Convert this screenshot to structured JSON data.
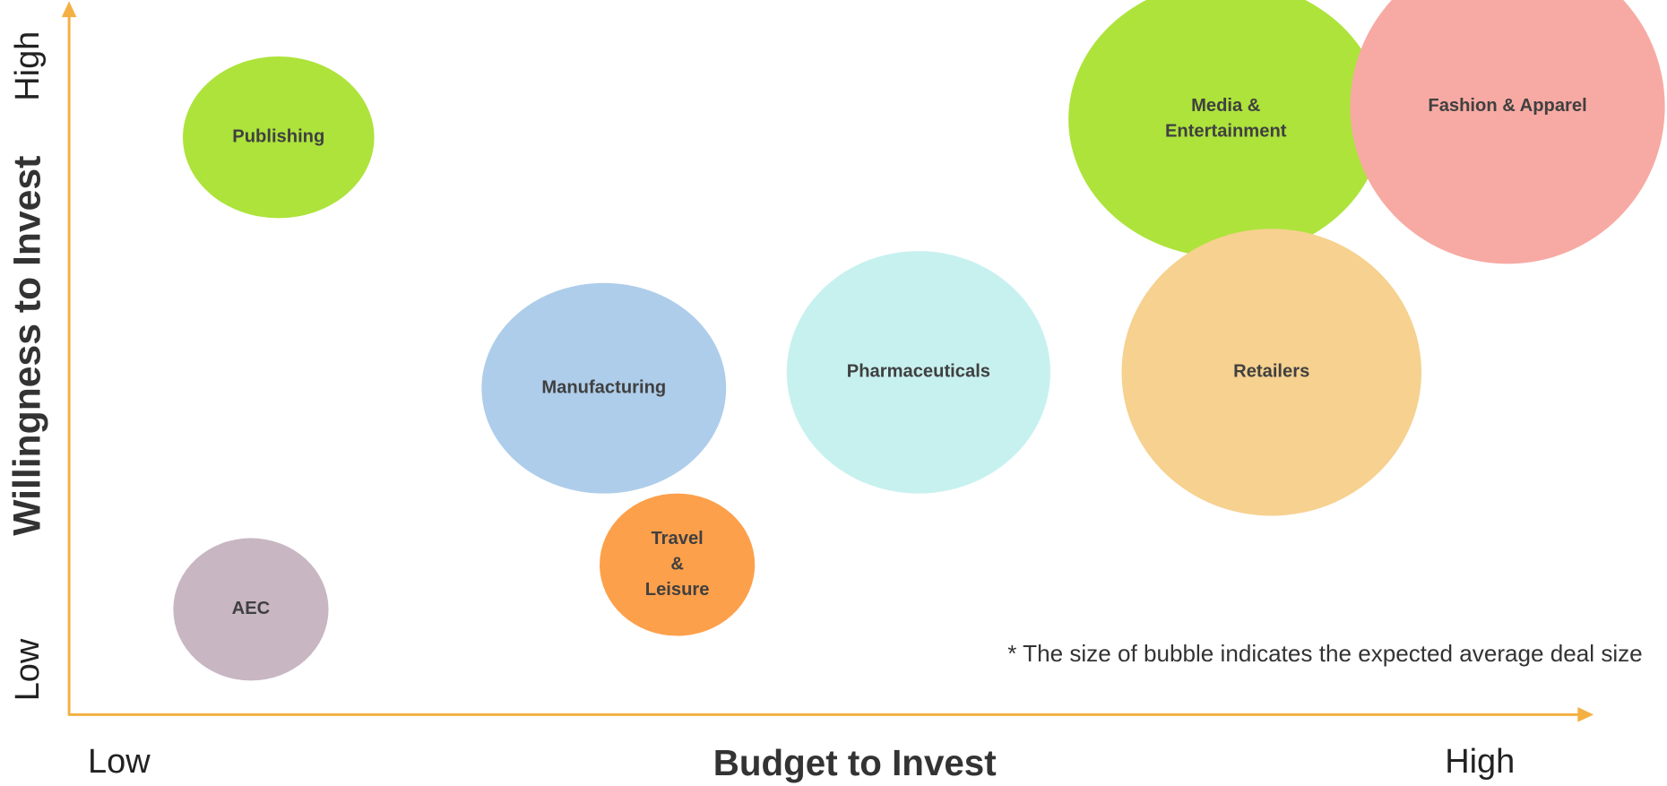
{
  "y_axis": {
    "label": "Willingness to Invest",
    "high": "High",
    "low": "Low"
  },
  "x_axis": {
    "label": "Budget to Invest",
    "low": "Low",
    "high": "High"
  },
  "nodes": [
    {
      "label": [
        "Publishing"
      ]
    },
    {
      "label": [
        "Media &",
        "Entertainment"
      ]
    },
    {
      "label": [
        "Fashion & Apparel"
      ]
    },
    {
      "label": [
        "Retailers"
      ]
    },
    {
      "label": [
        "Pharmaceuticals"
      ]
    },
    {
      "label": [
        "Manufacturing"
      ]
    },
    {
      "label": [
        "Travel",
        "&",
        "Leisure"
      ]
    },
    {
      "label": [
        "AEC"
      ]
    }
  ],
  "note": "* The size of bubble indicates the expected average deal size"
}
